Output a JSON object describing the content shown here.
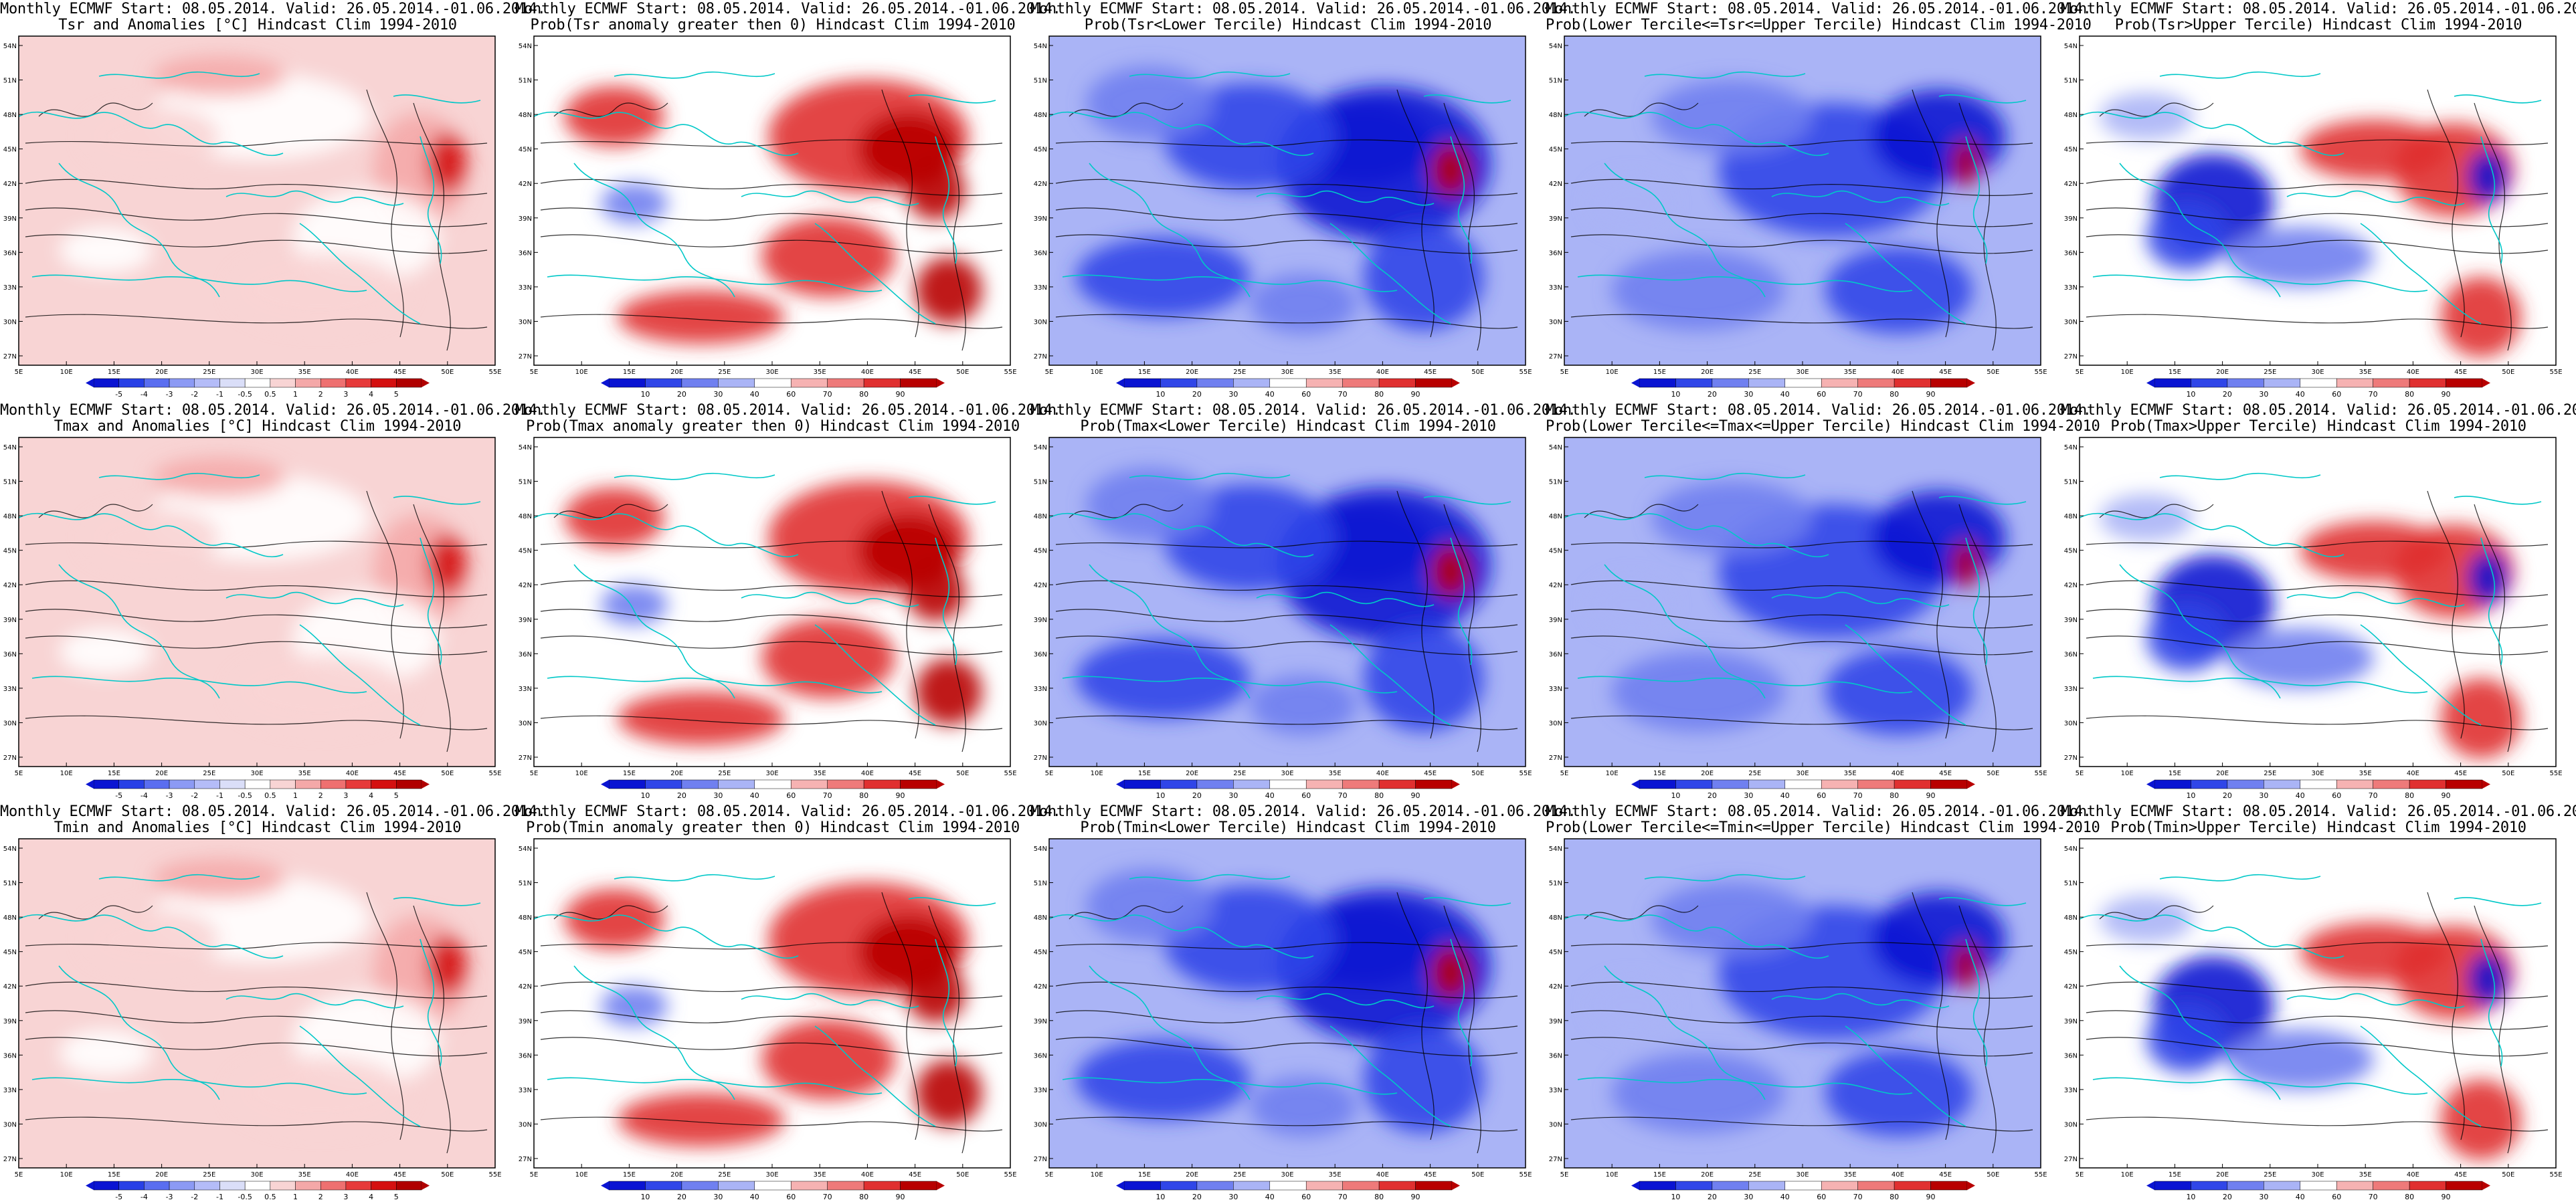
{
  "header_line": "Monthly ECMWF Start: 08.05.2014. Valid: 26.05.2014.-01.06.2014.",
  "panels": [
    {
      "title": "Tsr and Anomalies [°C] Hindcast Clim 1994-2010",
      "scale": "anomaly"
    },
    {
      "title": "Prob(Tsr anomaly greater then 0) Hindcast Clim 1994-2010",
      "scale": "prob"
    },
    {
      "title": "Prob(Tsr<Lower Tercile) Hindcast Clim 1994-2010",
      "scale": "prob"
    },
    {
      "title": "Prob(Lower Tercile<=Tsr<=Upper Tercile) Hindcast Clim 1994-2010",
      "scale": "prob"
    },
    {
      "title": "Prob(Tsr>Upper Tercile) Hindcast Clim 1994-2010",
      "scale": "prob"
    },
    {
      "title": "Tmax and Anomalies [°C] Hindcast Clim 1994-2010",
      "scale": "anomaly"
    },
    {
      "title": "Prob(Tmax anomaly greater then 0) Hindcast Clim 1994-2010",
      "scale": "prob"
    },
    {
      "title": "Prob(Tmax<Lower Tercile) Hindcast Clim 1994-2010",
      "scale": "prob"
    },
    {
      "title": "Prob(Lower Tercile<=Tmax<=Upper Tercile) Hindcast Clim 1994-2010",
      "scale": "prob"
    },
    {
      "title": "Prob(Tmax>Upper Tercile) Hindcast Clim 1994-2010",
      "scale": "prob"
    },
    {
      "title": "Tmin and Anomalies [°C] Hindcast Clim 1994-2010",
      "scale": "anomaly"
    },
    {
      "title": "Prob(Tmin anomaly greater then 0) Hindcast Clim 1994-2010",
      "scale": "prob"
    },
    {
      "title": "Prob(Tmin<Lower Tercile) Hindcast Clim 1994-2010",
      "scale": "prob"
    },
    {
      "title": "Prob(Lower Tercile<=Tmin<=Upper Tercile) Hindcast Clim 1994-2010",
      "scale": "prob"
    },
    {
      "title": "Prob(Tmin>Upper Tercile) Hindcast Clim 1994-2010",
      "scale": "prob"
    }
  ],
  "lat_ticks": [
    "54N",
    "51N",
    "48N",
    "45N",
    "42N",
    "39N",
    "36N",
    "33N",
    "30N",
    "27N"
  ],
  "lon_ticks": [
    "5E",
    "10E",
    "15E",
    "20E",
    "25E",
    "30E",
    "35E",
    "40E",
    "45E",
    "50E",
    "55E"
  ],
  "scales": {
    "anomaly": {
      "labels": [
        "-5",
        "-4",
        "-3",
        "-2",
        "-1",
        "-0.5",
        "0.5",
        "1",
        "2",
        "3",
        "4",
        "5"
      ],
      "colors": [
        "#0a14d2",
        "#2840e6",
        "#5a6ef0",
        "#8c9af4",
        "#b4bcf8",
        "#dadef8",
        "#ffffff",
        "#f8d4d4",
        "#f4a8a8",
        "#ee7070",
        "#e63a3a",
        "#d41010",
        "#b00000"
      ]
    },
    "prob": {
      "labels": [
        "10",
        "20",
        "30",
        "40",
        "60",
        "70",
        "80",
        "90"
      ],
      "colors": [
        "#0a14d2",
        "#3046e8",
        "#7080f0",
        "#aab4f6",
        "#ffffff",
        "#f6b2b2",
        "#ee7a7a",
        "#e03030",
        "#b80000"
      ]
    }
  }
}
